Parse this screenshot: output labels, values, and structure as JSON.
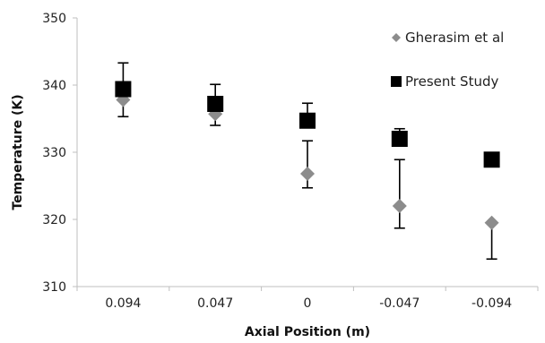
{
  "chart_data": {
    "type": "scatter",
    "title": "",
    "xlabel": "Axial Position (m)",
    "ylabel": "Temperature (K)",
    "categories": [
      "0.094",
      "0.047",
      "0",
      "-0.047",
      "-0.094"
    ],
    "ylim": [
      310,
      350
    ],
    "yticks": [
      310,
      320,
      330,
      340,
      350
    ],
    "grid": false,
    "legend_position": "top-right",
    "series": [
      {
        "name": "Gherasim et al",
        "marker": "diamond",
        "color": "#8c8c8c",
        "values": [
          337.8,
          335.7,
          326.8,
          322.0,
          319.5
        ],
        "error_upper": [
          null,
          null,
          331.7,
          328.9,
          null
        ],
        "error_lower": [
          335.3,
          334.0,
          324.7,
          318.7,
          314.1
        ]
      },
      {
        "name": "Present Study",
        "marker": "square",
        "color": "#000000",
        "values": [
          339.4,
          337.2,
          334.7,
          332.0,
          328.9
        ],
        "error_upper": [
          343.3,
          340.1,
          337.3,
          333.5,
          null
        ],
        "error_lower": [
          null,
          null,
          null,
          null,
          null
        ]
      }
    ]
  }
}
